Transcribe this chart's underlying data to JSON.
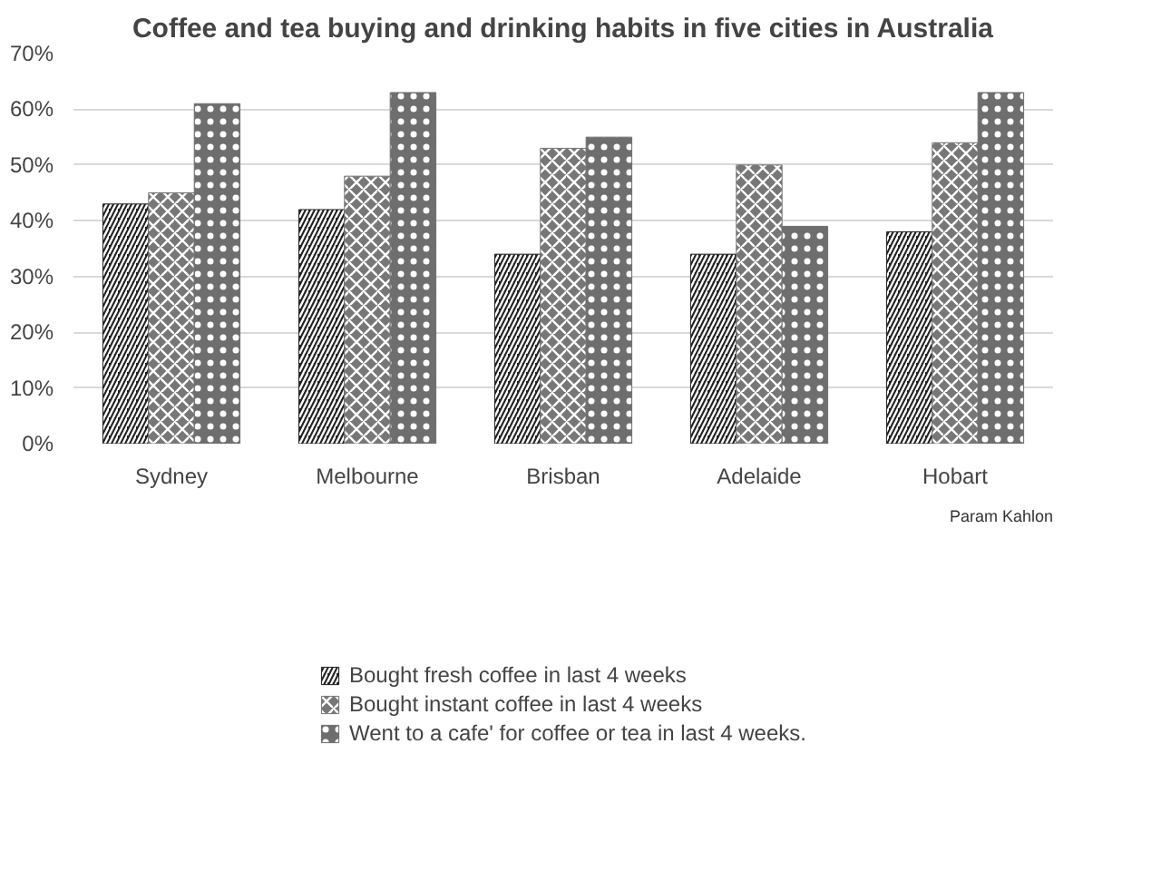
{
  "chart_data": {
    "type": "bar",
    "title": "Coffee and tea buying and drinking habits in five cities in Australia",
    "categories": [
      "Sydney",
      "Melbourne",
      "Brisban",
      "Adelaide",
      "Hobart"
    ],
    "series": [
      {
        "name": "Bought fresh coffee in last 4 weeks",
        "color": "#222222",
        "values": [
          43,
          42,
          34,
          34,
          38
        ]
      },
      {
        "name": "Bought instant coffee in last 4 weeks",
        "color": "#777777",
        "values": [
          45,
          48,
          53,
          50,
          54
        ]
      },
      {
        "name": "Went to a cafe' for coffee or tea in last 4 weeks.",
        "color": "#6e6e6e",
        "values": [
          61,
          63,
          55,
          39,
          63
        ]
      }
    ],
    "ylim": [
      0,
      70
    ],
    "yticks": [
      {
        "value": 0,
        "label": "0%"
      },
      {
        "value": 10,
        "label": "10%"
      },
      {
        "value": 20,
        "label": "20%"
      },
      {
        "value": 30,
        "label": "30%"
      },
      {
        "value": 40,
        "label": "40%"
      },
      {
        "value": 50,
        "label": "50%"
      },
      {
        "value": 60,
        "label": "60%"
      },
      {
        "value": 70,
        "label": "70%"
      }
    ],
    "grid": "y",
    "legend": "bottom",
    "annotations": [
      "Param Kahlon"
    ]
  }
}
